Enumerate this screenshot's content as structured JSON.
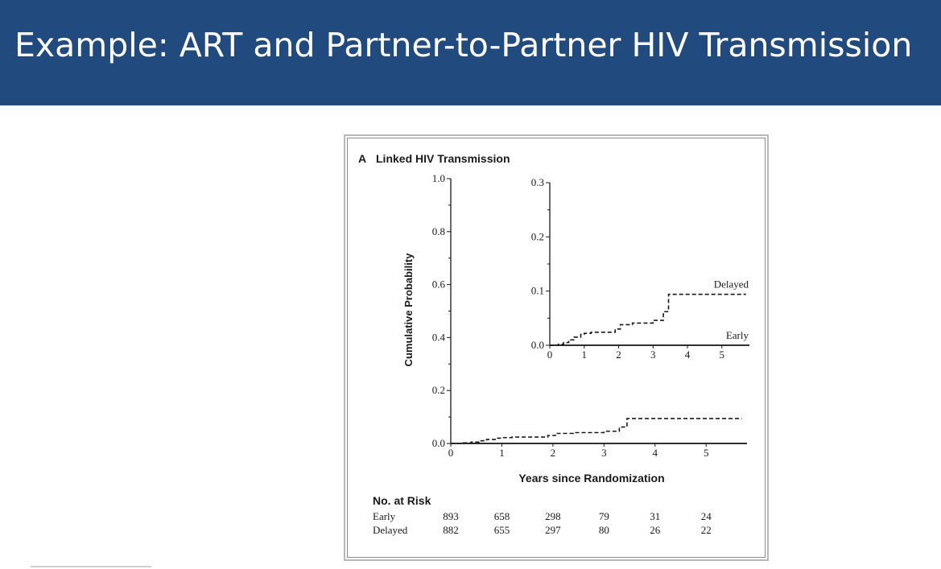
{
  "slide": {
    "title": "Example: ART and Partner-to-Partner HIV Transmission"
  },
  "colors": {
    "title_bar": "#214a7f",
    "title_text": "#ffffff",
    "series_line": "#1a1a1a"
  },
  "chart_data": [
    {
      "type": "line",
      "panel_label": "A",
      "title": "Linked HIV Transmission",
      "xlabel": "Years since Randomization",
      "ylabel": "Cumulative Probability",
      "xlim": [
        0,
        5.8
      ],
      "ylim": [
        0,
        1.0
      ],
      "x_ticks": [
        0,
        1,
        2,
        3,
        4,
        5
      ],
      "y_ticks": [
        "0.0",
        "0.2",
        "0.4",
        "0.6",
        "0.8",
        "1.0"
      ],
      "grid": false,
      "series": [
        {
          "name": "Early",
          "style": "solid",
          "x": [
            0,
            5.8
          ],
          "y": [
            0,
            0
          ]
        },
        {
          "name": "Delayed",
          "style": "dashed",
          "x": [
            0,
            0.25,
            0.4,
            0.55,
            0.7,
            0.9,
            1.0,
            1.2,
            1.9,
            2.05,
            2.4,
            3.0,
            3.3,
            3.45,
            5.7
          ],
          "y": [
            0,
            0.002,
            0.005,
            0.01,
            0.015,
            0.02,
            0.022,
            0.024,
            0.03,
            0.038,
            0.041,
            0.046,
            0.062,
            0.094,
            0.094
          ]
        }
      ]
    },
    {
      "type": "line",
      "role": "inset",
      "xlim": [
        0,
        5.8
      ],
      "ylim": [
        0,
        0.3
      ],
      "x_ticks": [
        0,
        1,
        2,
        3,
        4,
        5
      ],
      "y_ticks": [
        "0.0",
        "0.1",
        "0.2",
        "0.3"
      ],
      "grid": false,
      "series": [
        {
          "name": "Early",
          "style": "solid",
          "x": [
            0,
            5.8
          ],
          "y": [
            0,
            0
          ]
        },
        {
          "name": "Delayed",
          "style": "dashed",
          "x": [
            0,
            0.25,
            0.4,
            0.55,
            0.7,
            0.9,
            1.0,
            1.2,
            1.9,
            2.05,
            2.4,
            3.0,
            3.3,
            3.45,
            5.7
          ],
          "y": [
            0,
            0.002,
            0.005,
            0.01,
            0.015,
            0.02,
            0.022,
            0.024,
            0.03,
            0.038,
            0.041,
            0.046,
            0.062,
            0.094,
            0.094
          ]
        }
      ]
    }
  ],
  "risk_table": {
    "title": "No. at Risk",
    "x": [
      0,
      1,
      2,
      3,
      4,
      5
    ],
    "rows": [
      {
        "label": "Early",
        "values": [
          "893",
          "658",
          "298",
          "79",
          "31",
          "24"
        ]
      },
      {
        "label": "Delayed",
        "values": [
          "882",
          "655",
          "297",
          "80",
          "26",
          "22"
        ]
      }
    ]
  }
}
